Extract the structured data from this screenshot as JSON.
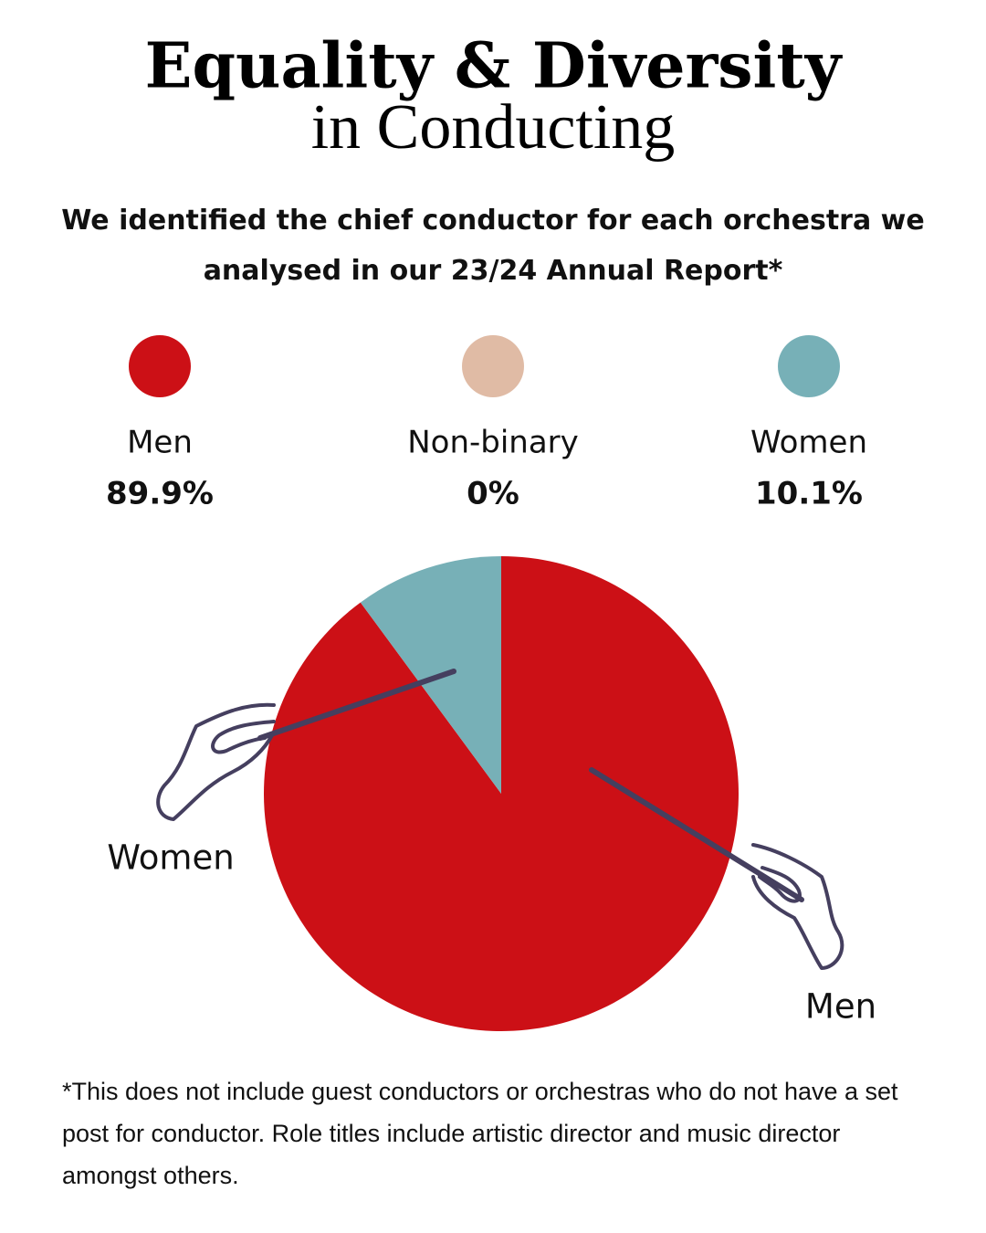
{
  "chart_data": {
    "type": "pie",
    "title": "Equality & Diversity",
    "subtitle": "in Conducting",
    "description": "We identified the chief conductor for each orchestra we analysed in our 23/24 Annual Report*",
    "categories": [
      "Men",
      "Non-binary",
      "Women"
    ],
    "values": [
      89.9,
      0,
      10.1
    ],
    "value_labels": [
      "89.9%",
      "0%",
      "10.1%"
    ],
    "colors": [
      "#cc1016",
      "#e0bba5",
      "#77b0b7"
    ],
    "footnote": "*This does not include guest conductors or orchestras who do not have a set post for conductor. Role titles include artistic director and music director amongst others."
  }
}
